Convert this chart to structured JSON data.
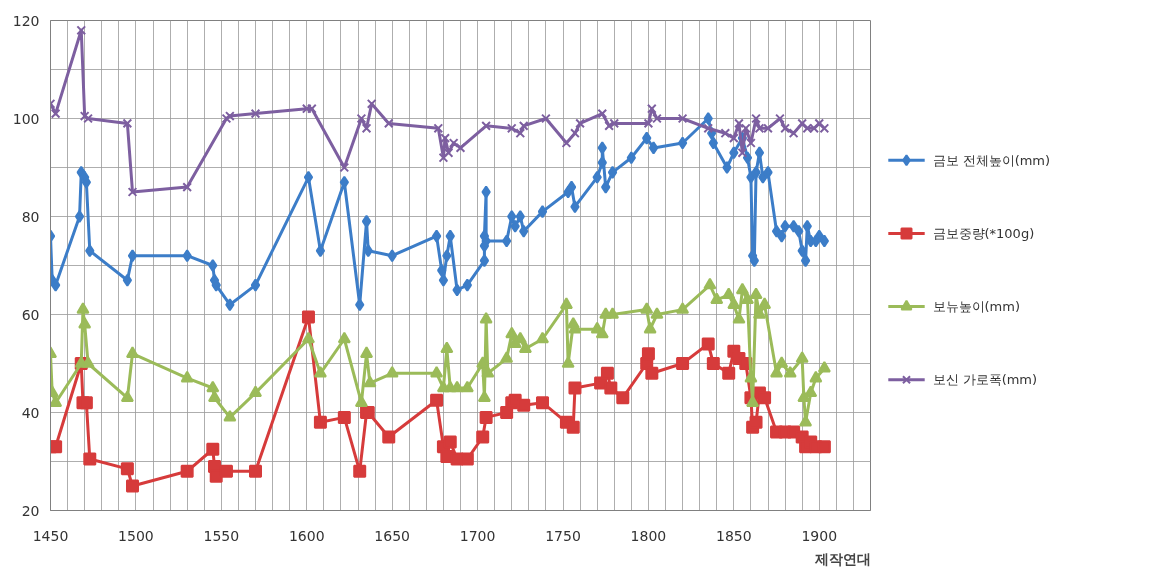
{
  "chart_data": {
    "type": "line",
    "xlabel": "제작연대",
    "xlim": [
      1450,
      1930
    ],
    "ylim": [
      20,
      120
    ],
    "xticks": [
      1450,
      {
        "value": 1460,
        "label": null
      },
      {
        "value": 1470,
        "label": null
      },
      {
        "value": 1480,
        "label": null
      },
      {
        "value": 1490,
        "label": null
      },
      1500,
      {
        "value": 1510,
        "label": null
      },
      {
        "value": 1520,
        "label": null
      },
      {
        "value": 1530,
        "label": null
      },
      {
        "value": 1540,
        "label": null
      },
      1550,
      {
        "value": 1560,
        "label": null
      },
      {
        "value": 1570,
        "label": null
      },
      {
        "value": 1580,
        "label": null
      },
      {
        "value": 1590,
        "label": null
      },
      1600,
      {
        "value": 1610,
        "label": null
      },
      {
        "value": 1620,
        "label": null
      },
      {
        "value": 1630,
        "label": null
      },
      {
        "value": 1640,
        "label": null
      },
      1650,
      {
        "value": 1660,
        "label": null
      },
      {
        "value": 1670,
        "label": null
      },
      {
        "value": 1680,
        "label": null
      },
      {
        "value": 1690,
        "label": null
      },
      1700,
      {
        "value": 1710,
        "label": null
      },
      {
        "value": 1720,
        "label": null
      },
      {
        "value": 1730,
        "label": null
      },
      {
        "value": 1740,
        "label": null
      },
      1750,
      {
        "value": 1760,
        "label": null
      },
      {
        "value": 1770,
        "label": null
      },
      {
        "value": 1780,
        "label": null
      },
      {
        "value": 1790,
        "label": null
      },
      1800,
      {
        "value": 1810,
        "label": null
      },
      {
        "value": 1820,
        "label": null
      },
      {
        "value": 1830,
        "label": null
      },
      {
        "value": 1840,
        "label": null
      },
      1850,
      {
        "value": 1860,
        "label": null
      },
      {
        "value": 1870,
        "label": null
      },
      {
        "value": 1880,
        "label": null
      },
      {
        "value": 1890,
        "label": null
      },
      1900,
      {
        "value": 1910,
        "label": null
      },
      {
        "value": 1920,
        "label": null
      },
      {
        "value": 1930,
        "label": null
      }
    ],
    "yticks": [
      20,
      {
        "value": 30,
        "label": null
      },
      40,
      {
        "value": 50,
        "label": null
      },
      60,
      {
        "value": 70,
        "label": null
      },
      80,
      {
        "value": 90,
        "label": null
      },
      100,
      {
        "value": 110,
        "label": null
      },
      120
    ],
    "grid": true,
    "legend": "right",
    "line_style": "solid",
    "series": [
      {
        "name": "금보 전체높이(mm)",
        "color": "#3c7dc8",
        "marker": "diamond",
        "x": [
          1450,
          1451,
          1453,
          1467,
          1468,
          1470,
          1471,
          1473,
          1495,
          1498,
          1530,
          1545,
          1546,
          1547,
          1555,
          1570,
          1601,
          1608,
          1622,
          1631,
          1635,
          1636,
          1650,
          1676,
          1679,
          1680,
          1682,
          1684,
          1688,
          1694,
          1704,
          1704,
          1704,
          1705,
          1705,
          1717,
          1720,
          1722,
          1725,
          1727,
          1738,
          1753,
          1755,
          1757,
          1770,
          1773,
          1773,
          1775,
          1779,
          1790,
          1799,
          1803,
          1820,
          1835,
          1837,
          1838,
          1846,
          1850,
          1855,
          1858,
          1860,
          1861,
          1862,
          1863,
          1865,
          1867,
          1870,
          1875,
          1878,
          1880,
          1885,
          1888,
          1890,
          1892,
          1893,
          1895,
          1898,
          1900,
          1903
        ],
        "values": [
          76,
          67,
          66,
          80,
          89,
          88,
          87,
          73,
          67,
          72,
          72,
          70,
          67,
          66,
          62,
          66,
          88,
          73,
          87,
          62,
          79,
          73,
          72,
          76,
          69,
          67,
          72,
          76,
          65,
          66,
          71,
          74,
          76,
          85,
          75,
          75,
          80,
          78,
          80,
          77,
          81,
          85,
          86,
          82,
          88,
          91,
          94,
          86,
          89,
          92,
          96,
          94,
          95,
          100,
          97,
          95,
          90,
          93,
          96,
          92,
          88,
          72,
          71,
          89,
          93,
          88,
          89,
          77,
          76,
          78,
          78,
          77,
          73,
          71,
          78,
          75,
          75,
          76,
          75
        ]
      },
      {
        "name": "금보중량(*100g)",
        "color": "#d63b3b",
        "marker": "square",
        "x": [
          1450,
          1453,
          1468,
          1469,
          1471,
          1473,
          1495,
          1498,
          1530,
          1545,
          1546,
          1547,
          1553,
          1570,
          1601,
          1608,
          1622,
          1631,
          1635,
          1636,
          1648,
          1676,
          1680,
          1682,
          1684,
          1688,
          1694,
          1703,
          1705,
          1717,
          1720,
          1722,
          1727,
          1738,
          1752,
          1756,
          1757,
          1772,
          1776,
          1778,
          1785,
          1799,
          1800,
          1802,
          1820,
          1835,
          1838,
          1847,
          1850,
          1853,
          1857,
          1860,
          1861,
          1863,
          1865,
          1868,
          1875,
          1880,
          1885,
          1890,
          1892,
          1895,
          1898,
          1903
        ],
        "values": [
          33,
          33,
          50,
          42,
          42,
          30.5,
          28.5,
          25,
          28,
          32.5,
          29,
          27,
          28,
          28,
          59.5,
          38,
          39,
          28,
          40,
          40,
          35,
          42.5,
          33,
          31,
          34,
          30.5,
          30.5,
          35,
          39,
          40,
          42,
          42.5,
          41.5,
          42,
          38,
          37,
          45,
          46,
          48,
          45,
          43,
          50,
          52,
          48,
          50,
          54,
          50,
          48,
          52.5,
          51,
          50,
          43,
          37,
          38,
          44,
          43,
          36,
          36,
          36,
          35,
          33,
          34,
          33,
          33
        ]
      },
      {
        "name": "보뉴높이(mm)",
        "color": "#9bbb59",
        "marker": "triangle",
        "x": [
          1450,
          1451,
          1453,
          1468,
          1469,
          1470,
          1472,
          1495,
          1498,
          1530,
          1545,
          1546,
          1555,
          1570,
          1601,
          1608,
          1622,
          1632,
          1635,
          1637,
          1650,
          1676,
          1680,
          1682,
          1684,
          1688,
          1694,
          1703,
          1704,
          1705,
          1706,
          1717,
          1720,
          1722,
          1725,
          1728,
          1738,
          1752,
          1753,
          1756,
          1757,
          1770,
          1773,
          1775,
          1779,
          1799,
          1801,
          1805,
          1820,
          1836,
          1840,
          1847,
          1850,
          1853,
          1855,
          1858,
          1860,
          1861,
          1863,
          1865,
          1868,
          1875,
          1878,
          1883,
          1890,
          1891,
          1892,
          1895,
          1898,
          1903
        ],
        "values": [
          52,
          44,
          42,
          50,
          61,
          58,
          50,
          43,
          52,
          47,
          45,
          43,
          39,
          44,
          55,
          48,
          55,
          42,
          52,
          46,
          48,
          48,
          45,
          53,
          45,
          45,
          45,
          50,
          43,
          59,
          48,
          51,
          56,
          54,
          55,
          53,
          55,
          62,
          50,
          58,
          57,
          57,
          56,
          60,
          60,
          61,
          57,
          60,
          61,
          66,
          63,
          64,
          62,
          59,
          65,
          63,
          47,
          42,
          64,
          60,
          62,
          48,
          50,
          48,
          51,
          43,
          38,
          44,
          47,
          49
        ]
      },
      {
        "name": "보신 가로폭(mm)",
        "color": "#7d5fa0",
        "marker": "cross",
        "x": [
          1450,
          1453,
          1468,
          1470,
          1472,
          1495,
          1498,
          1530,
          1553,
          1555,
          1570,
          1600,
          1603,
          1622,
          1632,
          1635,
          1638,
          1648,
          1677,
          1680,
          1681,
          1683,
          1686,
          1690,
          1705,
          1720,
          1725,
          1727,
          1740,
          1752,
          1757,
          1760,
          1773,
          1777,
          1780,
          1800,
          1802,
          1805,
          1820,
          1835,
          1845,
          1850,
          1853,
          1855,
          1857,
          1860,
          1863,
          1865,
          1870,
          1877,
          1880,
          1885,
          1890,
          1893,
          1897,
          1900,
          1903
        ],
        "values": [
          103,
          101,
          118,
          100.5,
          100,
          99,
          85,
          86,
          100,
          100.5,
          101,
          102,
          102,
          90,
          100,
          98,
          103,
          99,
          98,
          92,
          96,
          93,
          95,
          94,
          98.5,
          98,
          97,
          98.5,
          100,
          95,
          97,
          99,
          101,
          98.5,
          99,
          99,
          102,
          100,
          100,
          98,
          97,
          96,
          99,
          93,
          98,
          95,
          100,
          98,
          98,
          100,
          98,
          97,
          99,
          98,
          98,
          99,
          98
        ]
      }
    ]
  }
}
